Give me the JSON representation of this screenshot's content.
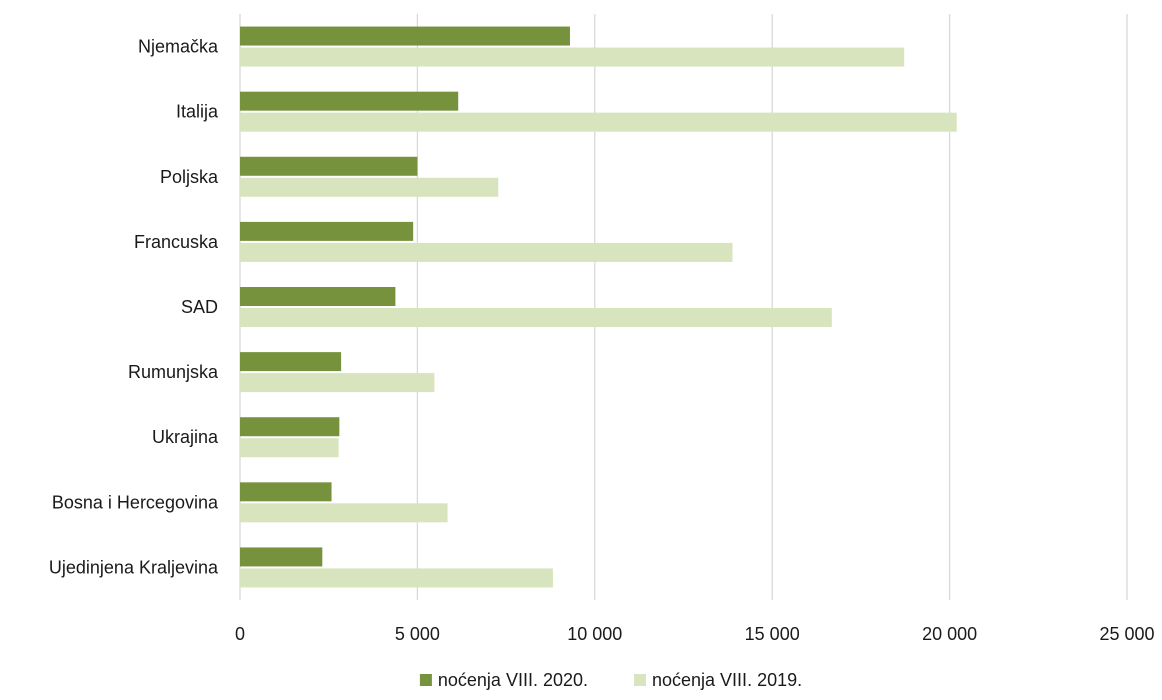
{
  "chart_data": {
    "type": "bar",
    "orientation": "horizontal",
    "categories": [
      "Njemačka",
      "Italija",
      "Poljska",
      "Francuska",
      "SAD",
      "Rumunjska",
      "Ukrajina",
      "Bosna i Hercegovina",
      "Ujedinjena Kraljevina"
    ],
    "series": [
      {
        "name": "noćenja VIII. 2020.",
        "color": "#76923c",
        "values": [
          9300,
          6150,
          5000,
          4880,
          4380,
          2850,
          2800,
          2580,
          2320
        ]
      },
      {
        "name": "noćenja VIII. 2019.",
        "color": "#d7e4bd",
        "values": [
          18720,
          20200,
          7280,
          13880,
          16680,
          5480,
          2780,
          5850,
          8820
        ]
      }
    ],
    "xlim": [
      0,
      25000
    ],
    "xticks": [
      0,
      5000,
      10000,
      15000,
      20000,
      25000
    ],
    "xtick_labels": [
      "0",
      "5 000",
      "10 000",
      "15 000",
      "20 000",
      "25 000"
    ],
    "title": "",
    "xlabel": "",
    "ylabel": "",
    "grid": "vertical",
    "legend_position": "bottom"
  }
}
